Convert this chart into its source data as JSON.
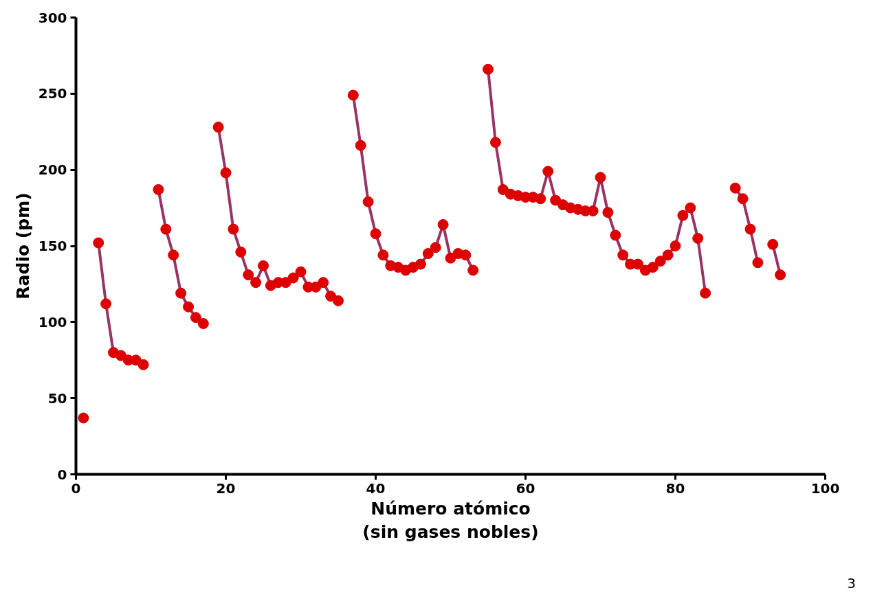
{
  "chart_data": {
    "type": "line",
    "xlabel": "Número atómico\n(sin gases nobles)",
    "ylabel": "Radio (pm)",
    "x": [
      1,
      2,
      3,
      4,
      5,
      6,
      7,
      8,
      9,
      10,
      11,
      12,
      13,
      14,
      15,
      16,
      17,
      18,
      19,
      20,
      21,
      22,
      23,
      24,
      25,
      26,
      27,
      28,
      29,
      30,
      31,
      32,
      33,
      34,
      35,
      36,
      37,
      38,
      39,
      40,
      41,
      42,
      43,
      44,
      45,
      46,
      47,
      48,
      49,
      50,
      51,
      52,
      53,
      54,
      55,
      56,
      57,
      58,
      59,
      60,
      61,
      62,
      63,
      64,
      65,
      66,
      67,
      68,
      69,
      70,
      71,
      72,
      73,
      74,
      75,
      76,
      77,
      78,
      79,
      80,
      81,
      82,
      83,
      84,
      85,
      86,
      87,
      88,
      89,
      90,
      91,
      92,
      93,
      94
    ],
    "series": [
      {
        "color": "#993366",
        "values": [
          37,
          null,
          152,
          112,
          80,
          78,
          75,
          75,
          72,
          null,
          187,
          161,
          144,
          119,
          110,
          103,
          99,
          null,
          228,
          198,
          161,
          146,
          131,
          126,
          137,
          124,
          126,
          126,
          129,
          133,
          123,
          123,
          126,
          117,
          114,
          null,
          249,
          216,
          179,
          158,
          144,
          137,
          136,
          134,
          136,
          138,
          145,
          149,
          164,
          142,
          145,
          144,
          134,
          null,
          266,
          218,
          187,
          184,
          183,
          182,
          182,
          181,
          199,
          180,
          177,
          175,
          174,
          173,
          173,
          195,
          172,
          157,
          144,
          138,
          138,
          134,
          136,
          140,
          144,
          150,
          170,
          175,
          155,
          119,
          null,
          null,
          null,
          188,
          181,
          161,
          139,
          null,
          151,
          131
        ],
        "colors": [
          "#dd0000",
          "#dd0000",
          "#dd0000",
          "#dd0000",
          "#dd0000",
          "#dd0000",
          "#dd0000",
          "#dd0000",
          "#dd0000",
          "#dd0000",
          "#dd0000",
          "#dd0000",
          "#dd0000",
          "#dd0000",
          "#dd0000",
          "#dd0000",
          "#dd0000",
          "#dd0000",
          "#dd0000",
          "#dd0000",
          "#dd0000",
          "#dd0000",
          "#dd0000",
          "#dd0000",
          "#dd0000",
          "#dd0000",
          "#dd0000",
          "#dd0000",
          "#dd0000",
          "#dd0000",
          "#dd0000",
          "#dd0000",
          "#dd0000",
          "#dd0000",
          "#dd0000",
          "#dd0000",
          "#dd0000",
          "#dd0000",
          "#dd0000",
          "#dd0000",
          "#dd0000",
          "#dd0000",
          "#dd0000",
          "#dd0000",
          "#dd0000",
          "#dd0000",
          "#dd0000",
          "#dd0000",
          "#dd0000",
          "#dd0000",
          "#dd0000",
          "#dd0000",
          "#dd0000",
          "#dd0000",
          "#dd0000",
          "#dd0000",
          "#dd0000",
          "#dd0000",
          "#dd0000",
          "#dd0000",
          "#dd0000",
          "#dd0000",
          "#dd0000",
          "#dd0000",
          "#dd0000",
          "#dd0000",
          "#dd0000",
          "#dd0000",
          "#dd0000",
          "#dd0000",
          "#dd0000",
          "#dd0000",
          "#dd0000",
          "#dd0000",
          "#dd0000",
          "#dd0000",
          "#dd0000",
          "#dd0000",
          "#dd0000",
          "#dd0000",
          "#dd0000",
          "#dd0000",
          "#dd0000",
          "#dd0000",
          "#dd0000",
          "#dd0000",
          "#dd0000",
          "#dd0000",
          "#dd0000",
          "#dd0000",
          "#dd0000",
          "#dd0000",
          "#dd0000",
          "#dd0000"
        ]
      }
    ],
    "marker": "circle",
    "line_style": "solid",
    "grid": false,
    "xlim": [
      0,
      100
    ],
    "xticks": [
      0,
      20,
      40,
      60,
      80,
      100
    ],
    "ylim": [
      0,
      300
    ],
    "yticks": [
      0,
      50,
      100,
      150,
      200,
      250,
      300
    ],
    "annotations": [
      "3"
    ]
  }
}
